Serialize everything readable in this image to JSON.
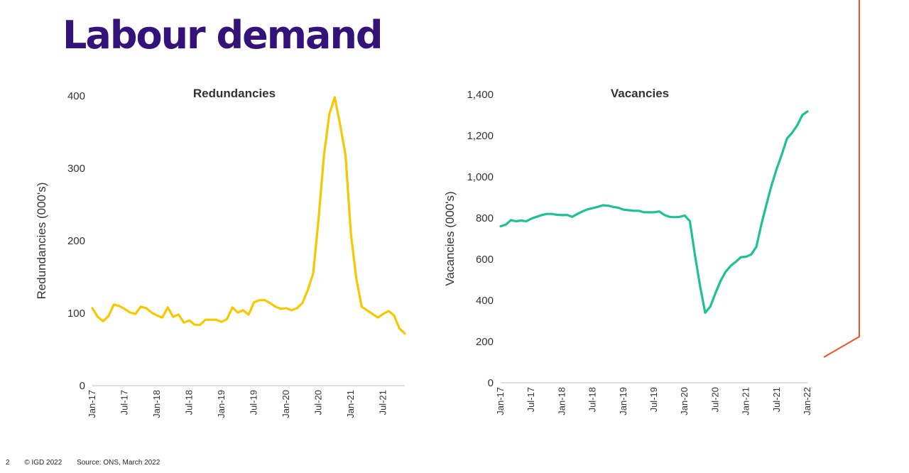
{
  "page": {
    "title": "Labour demand",
    "footer": {
      "page_number": "2",
      "copyright": "© IGD 2022",
      "source": "Source: ONS, March 2022"
    },
    "accent_color": "#e8552a",
    "title_color": "#33127a"
  },
  "chart_data": [
    {
      "type": "line",
      "title": "Redundancies",
      "ylabel": "Redundancies (000's)",
      "xlabel": "",
      "ylim": [
        0,
        400
      ],
      "yticks": [
        0,
        100,
        200,
        300,
        400
      ],
      "ytick_labels": [
        "0",
        "100",
        "200",
        "300",
        "400"
      ],
      "grid": false,
      "color": "#f5c800",
      "xtick_labels": [
        "Jan-17",
        "Jul-17",
        "Jan-18",
        "Jul-18",
        "Jan-19",
        "Jul-19",
        "Jan-20",
        "Jul-20",
        "Jan-21",
        "Jul-21"
      ],
      "xtick_index": [
        0,
        6,
        12,
        18,
        24,
        30,
        36,
        42,
        48,
        54
      ],
      "x": [
        "Jan-17",
        "Feb-17",
        "Mar-17",
        "Apr-17",
        "May-17",
        "Jun-17",
        "Jul-17",
        "Aug-17",
        "Sep-17",
        "Oct-17",
        "Nov-17",
        "Dec-17",
        "Jan-18",
        "Feb-18",
        "Mar-18",
        "Apr-18",
        "May-18",
        "Jun-18",
        "Jul-18",
        "Aug-18",
        "Sep-18",
        "Oct-18",
        "Nov-18",
        "Dec-18",
        "Jan-19",
        "Feb-19",
        "Mar-19",
        "Apr-19",
        "May-19",
        "Jun-19",
        "Jul-19",
        "Aug-19",
        "Sep-19",
        "Oct-19",
        "Nov-19",
        "Dec-19",
        "Jan-20",
        "Feb-20",
        "Mar-20",
        "Apr-20",
        "May-20",
        "Jun-20",
        "Jul-20",
        "Aug-20",
        "Sep-20",
        "Oct-20",
        "Nov-20",
        "Dec-20",
        "Jan-21",
        "Feb-21",
        "Mar-21",
        "Apr-21",
        "May-21",
        "Jun-21",
        "Jul-21",
        "Aug-21",
        "Sep-21",
        "Oct-21",
        "Nov-21"
      ],
      "values": [
        107,
        95,
        89,
        96,
        112,
        110,
        106,
        101,
        99,
        109,
        107,
        101,
        97,
        94,
        108,
        95,
        98,
        87,
        90,
        84,
        84,
        91,
        91,
        91,
        88,
        92,
        108,
        101,
        104,
        98,
        115,
        118,
        118,
        114,
        109,
        106,
        107,
        104,
        107,
        114,
        132,
        155,
        230,
        318,
        375,
        398,
        360,
        318,
        210,
        148,
        109,
        104,
        99,
        94,
        99,
        103,
        97,
        79,
        72
      ]
    },
    {
      "type": "line",
      "title": "Vacancies",
      "ylabel": "Vacancies (000's)",
      "xlabel": "",
      "ylim": [
        0,
        1400
      ],
      "yticks": [
        0,
        200,
        400,
        600,
        800,
        1000,
        1200,
        1400
      ],
      "ytick_labels": [
        "0",
        "200",
        "400",
        "600",
        "800",
        "1,000",
        "1,200",
        "1,400"
      ],
      "grid": false,
      "color": "#1fc094",
      "xtick_labels": [
        "Jan-17",
        "Jul-17",
        "Jan-18",
        "Jul-18",
        "Jan-19",
        "Jul-19",
        "Jan-20",
        "Jul-20",
        "Jan-21",
        "Jul-21",
        "Jan-22"
      ],
      "xtick_index": [
        0,
        6,
        12,
        18,
        24,
        30,
        36,
        42,
        48,
        54,
        60
      ],
      "x": [
        "Jan-17",
        "Feb-17",
        "Mar-17",
        "Apr-17",
        "May-17",
        "Jun-17",
        "Jul-17",
        "Aug-17",
        "Sep-17",
        "Oct-17",
        "Nov-17",
        "Dec-17",
        "Jan-18",
        "Feb-18",
        "Mar-18",
        "Apr-18",
        "May-18",
        "Jun-18",
        "Jul-18",
        "Aug-18",
        "Sep-18",
        "Oct-18",
        "Nov-18",
        "Dec-18",
        "Jan-19",
        "Feb-19",
        "Mar-19",
        "Apr-19",
        "May-19",
        "Jun-19",
        "Jul-19",
        "Aug-19",
        "Sep-19",
        "Oct-19",
        "Nov-19",
        "Dec-19",
        "Jan-20",
        "Feb-20",
        "Mar-20",
        "Apr-20",
        "May-20",
        "Jun-20",
        "Jul-20",
        "Aug-20",
        "Sep-20",
        "Oct-20",
        "Nov-20",
        "Dec-20",
        "Jan-21",
        "Feb-21",
        "Mar-21",
        "Apr-21",
        "May-21",
        "Jun-21",
        "Jul-21",
        "Aug-21",
        "Sep-21",
        "Oct-21",
        "Nov-21",
        "Dec-21",
        "Jan-22"
      ],
      "values": [
        760,
        768,
        790,
        784,
        788,
        784,
        797,
        806,
        814,
        820,
        820,
        816,
        814,
        815,
        806,
        820,
        832,
        842,
        848,
        854,
        862,
        860,
        854,
        850,
        841,
        838,
        835,
        835,
        828,
        828,
        828,
        832,
        815,
        806,
        804,
        806,
        812,
        785,
        620,
        470,
        340,
        370,
        435,
        494,
        539,
        568,
        588,
        610,
        612,
        623,
        660,
        770,
        868,
        960,
        1040,
        1110,
        1186,
        1214,
        1250,
        1300,
        1318
      ]
    }
  ]
}
